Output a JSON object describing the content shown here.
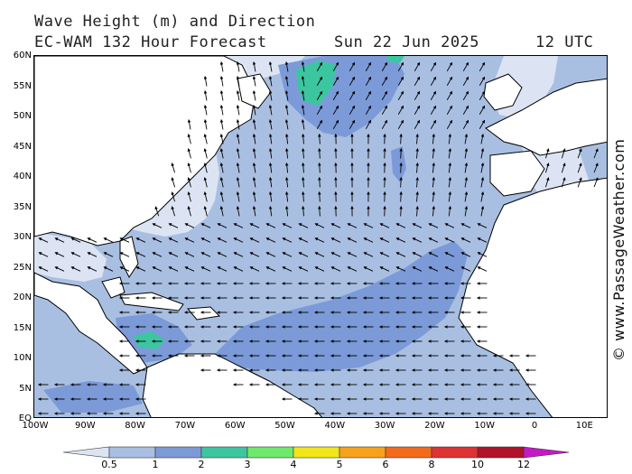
{
  "header": {
    "title_line1": "Wave Height (m) and Direction",
    "title_line2": "EC-WAM 132 Hour Forecast",
    "date": "Sun 22 Jun 2025",
    "time": "12 UTC"
  },
  "credit": "© www.PassageWeather.com",
  "axes": {
    "lat_labels": [
      "60N",
      "55N",
      "50N",
      "45N",
      "40N",
      "35N",
      "30N",
      "25N",
      "20N",
      "15N",
      "10N",
      "5N",
      "EQ"
    ],
    "lon_labels": [
      "100W",
      "90W",
      "80W",
      "70W",
      "60W",
      "50W",
      "40W",
      "30W",
      "20W",
      "10W",
      "0",
      "10E"
    ]
  },
  "legend": {
    "labels": [
      "0.5",
      "1",
      "2",
      "3",
      "4",
      "5",
      "6",
      "8",
      "10",
      "12"
    ],
    "colors": [
      "#dce4f4",
      "#a9bfe2",
      "#7c9ad8",
      "#3cc6a0",
      "#6fe96a",
      "#f2e51a",
      "#f7a21c",
      "#f36b1a",
      "#e03232",
      "#b0122a",
      "#c41ac4"
    ]
  },
  "colors": {
    "land": "#ffffff",
    "wave_0_5_1": "#dce4f4",
    "wave_1_2": "#a9bfe2",
    "wave_2_3": "#7c9ad8",
    "wave_3_4": "#3cc6a0"
  }
}
